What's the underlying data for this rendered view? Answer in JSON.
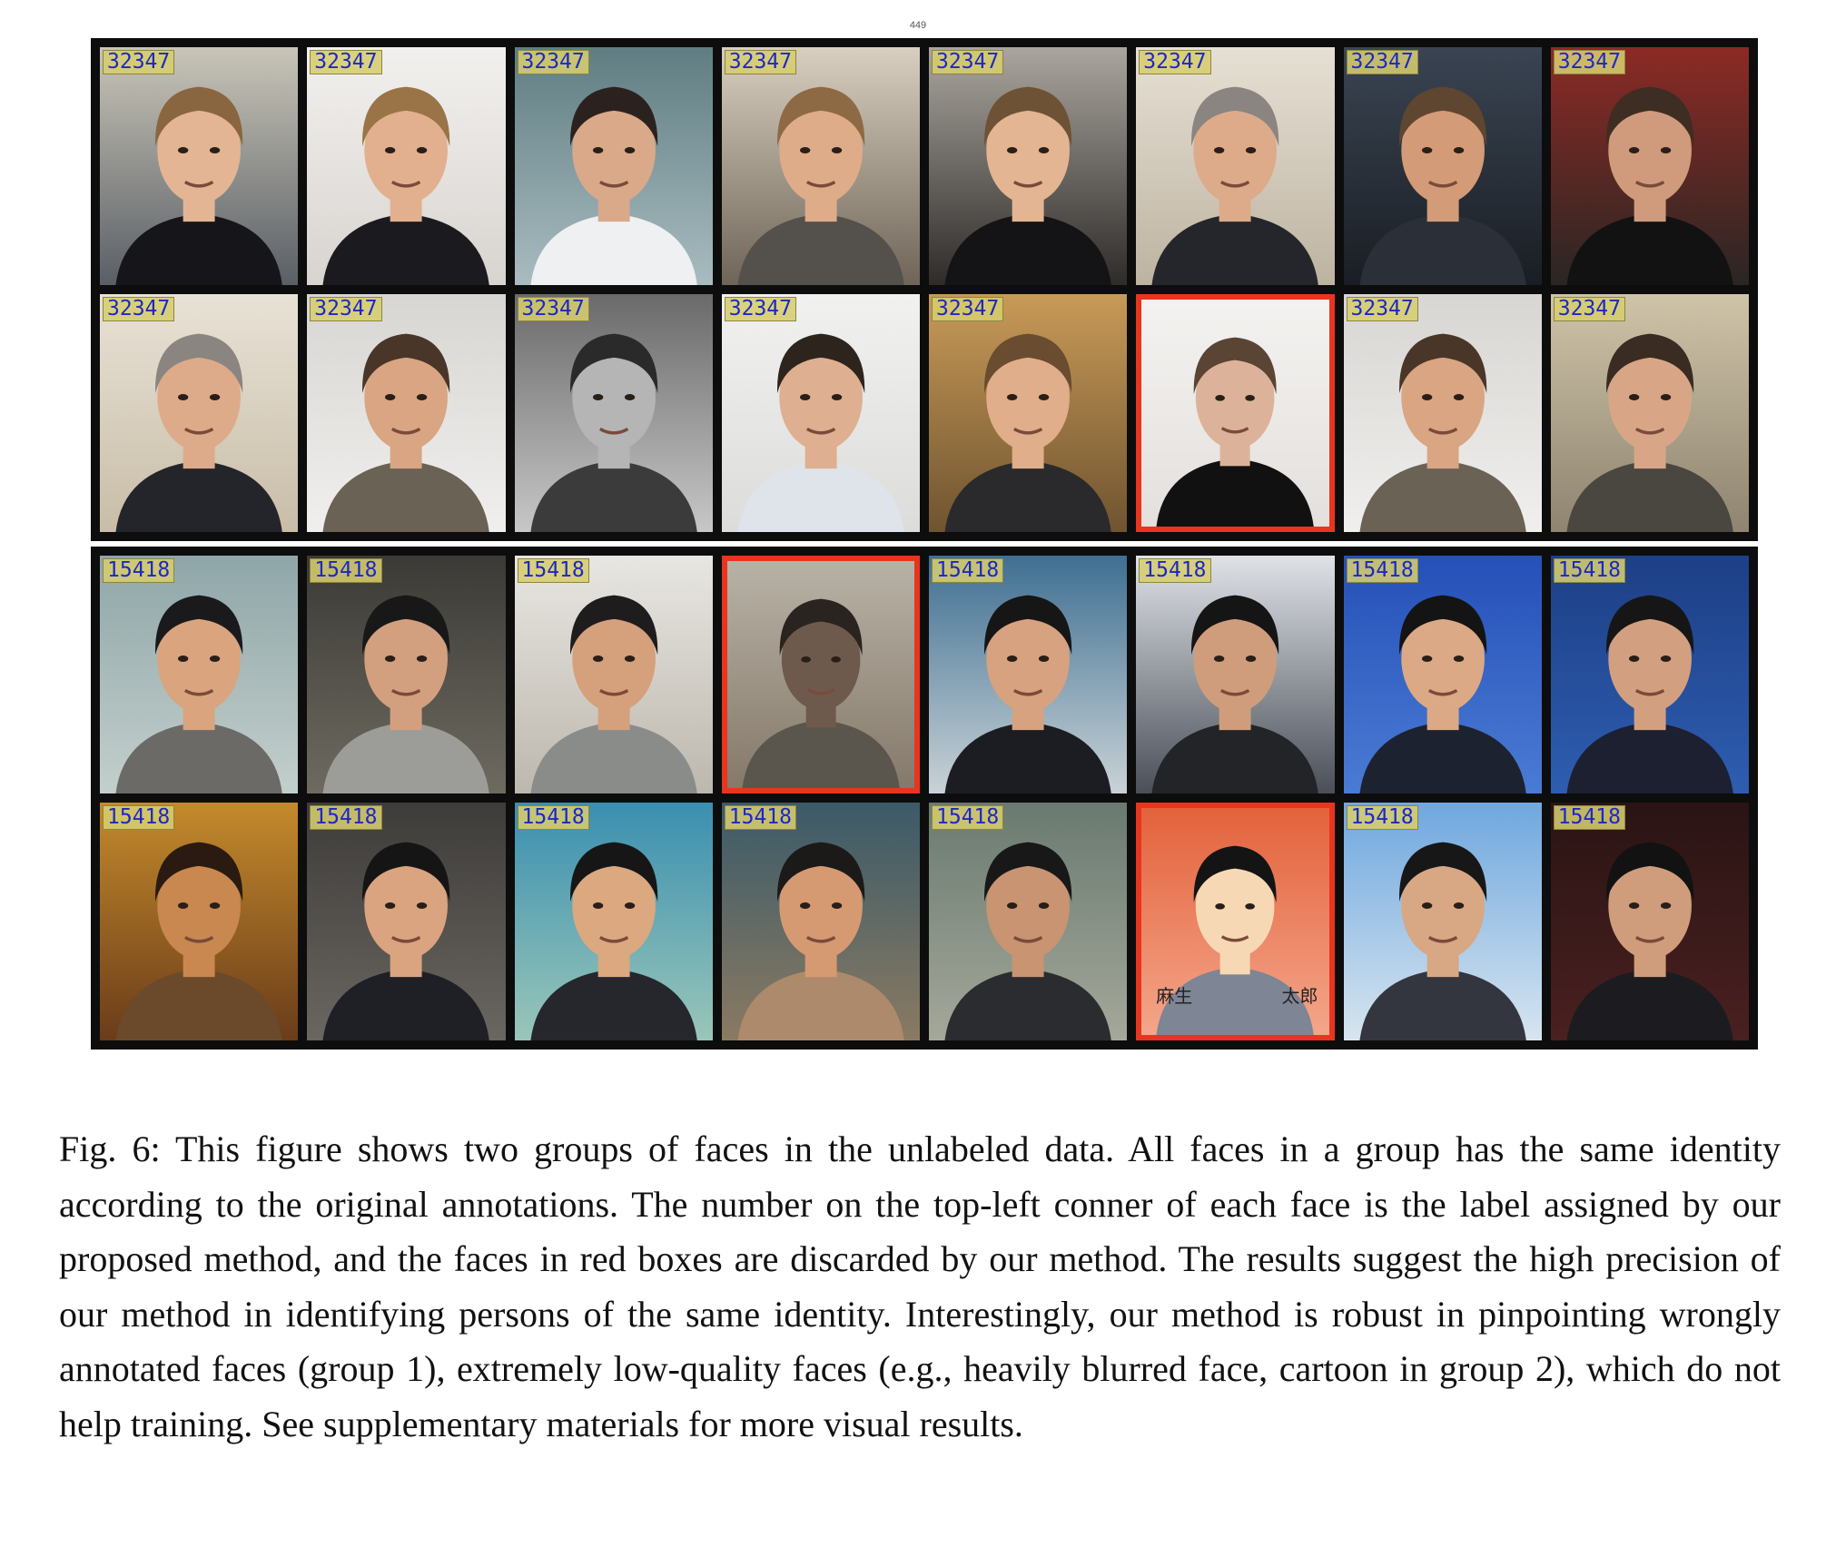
{
  "page_number": "449",
  "groups": [
    {
      "faces": [
        {
          "label": "32347",
          "discarded": false,
          "bg1": "#c9c5b8",
          "bg2": "#5a5f66",
          "skin": "#e3b594",
          "hair": "#8a6640",
          "shirt": "#15151a"
        },
        {
          "label": "32347",
          "discarded": false,
          "bg1": "#f2f0ee",
          "bg2": "#d8d4d0",
          "skin": "#e2b08f",
          "hair": "#9a7447",
          "shirt": "#1b1b1f"
        },
        {
          "label": "32347",
          "discarded": false,
          "bg1": "#5f7d82",
          "bg2": "#a9bcc0",
          "skin": "#d9a98a",
          "hair": "#2b2220",
          "shirt": "#eef0f2"
        },
        {
          "label": "32347",
          "discarded": false,
          "bg1": "#d9cfc0",
          "bg2": "#6e6558",
          "skin": "#dfac89",
          "hair": "#8e6a44",
          "shirt": "#54514c"
        },
        {
          "label": "32347",
          "discarded": false,
          "bg1": "#aaa59e",
          "bg2": "#2e2b29",
          "skin": "#e4b592",
          "hair": "#6e5235",
          "shirt": "#141416"
        },
        {
          "label": "32347",
          "discarded": false,
          "bg1": "#e6e0d4",
          "bg2": "#bdb3a1",
          "skin": "#ddab8a",
          "hair": "#8a8580",
          "shirt": "#24262c"
        },
        {
          "label": "32347",
          "discarded": false,
          "bg1": "#3a4452",
          "bg2": "#1a1e24",
          "skin": "#d49b78",
          "hair": "#5e4630",
          "shirt": "#2a2f38"
        },
        {
          "label": "32347",
          "discarded": false,
          "bg1": "#8c2a25",
          "bg2": "#2a2624",
          "skin": "#cf9b7c",
          "hair": "#3e2d22",
          "shirt": "#121212"
        },
        {
          "label": "32347",
          "discarded": false,
          "bg1": "#e8e2d6",
          "bg2": "#c8bda8",
          "skin": "#ddab8a",
          "hair": "#8a8580",
          "shirt": "#23252b"
        },
        {
          "label": "32347",
          "discarded": false,
          "bg1": "#d8d6d3",
          "bg2": "#f0efed",
          "skin": "#d9a583",
          "hair": "#4a3628",
          "shirt": "#6a6254"
        },
        {
          "label": "32347",
          "discarded": false,
          "bg1": "#6a6a6a",
          "bg2": "#c7c7c7",
          "skin": "#b5b5b5",
          "hair": "#2a2a2a",
          "shirt": "#3b3b3b"
        },
        {
          "label": "32347",
          "discarded": false,
          "bg1": "#f1f1ef",
          "bg2": "#dcdcda",
          "skin": "#deaf90",
          "hair": "#2e241e",
          "shirt": "#dfe3ea"
        },
        {
          "label": "32347",
          "discarded": false,
          "bg1": "#c89a58",
          "bg2": "#6f5430",
          "skin": "#e0ae8a",
          "hair": "#6a4c30",
          "shirt": "#2a2a2c"
        },
        {
          "label": "",
          "discarded": true,
          "bg1": "#f4f2f0",
          "bg2": "#e3e0dd",
          "skin": "#dcb39a",
          "hair": "#5a4434",
          "shirt": "#111111"
        },
        {
          "label": "32347",
          "discarded": false,
          "bg1": "#d8d6d3",
          "bg2": "#f0efed",
          "skin": "#d9a583",
          "hair": "#4a3628",
          "shirt": "#6a6254"
        },
        {
          "label": "32347",
          "discarded": false,
          "bg1": "#cfc4a8",
          "bg2": "#8e8470",
          "skin": "#d8a686",
          "hair": "#3a2c22",
          "shirt": "#4a4640"
        }
      ]
    },
    {
      "faces": [
        {
          "label": "15418",
          "discarded": false,
          "bg1": "#8fa6a8",
          "bg2": "#c3cfcc",
          "skin": "#d9a47e",
          "hair": "#1a1a1c",
          "shirt": "#6b6a66"
        },
        {
          "label": "15418",
          "discarded": false,
          "bg1": "#3b3a36",
          "bg2": "#6e6a60",
          "skin": "#d3a07f",
          "hair": "#181818",
          "shirt": "#9c9c98"
        },
        {
          "label": "15418",
          "discarded": false,
          "bg1": "#e8e6e2",
          "bg2": "#bdb8ae",
          "skin": "#d5a07c",
          "hair": "#1e1c1c",
          "shirt": "#8a8c8a"
        },
        {
          "label": "",
          "discarded": true,
          "bg1": "#b8b2a6",
          "bg2": "#85796a",
          "skin": "#6e5a4c",
          "hair": "#2a2420",
          "shirt": "#5a564e"
        },
        {
          "label": "15418",
          "discarded": false,
          "bg1": "#3f6f92",
          "bg2": "#c9d2d6",
          "skin": "#d6a27f",
          "hair": "#161616",
          "shirt": "#1b1d22"
        },
        {
          "label": "15418",
          "discarded": false,
          "bg1": "#dfe3e8",
          "bg2": "#4a4f58",
          "skin": "#d09d7c",
          "hair": "#151515",
          "shirt": "#232428"
        },
        {
          "label": "15418",
          "discarded": false,
          "bg1": "#2550b8",
          "bg2": "#4a7bd4",
          "skin": "#dba985",
          "hair": "#141414",
          "shirt": "#1d2230"
        },
        {
          "label": "15418",
          "discarded": false,
          "bg1": "#1d3f86",
          "bg2": "#2e5db0",
          "skin": "#d2a080",
          "hair": "#161616",
          "shirt": "#1c2030"
        },
        {
          "label": "15418",
          "discarded": false,
          "bg1": "#c48a2c",
          "bg2": "#6a3c1a",
          "skin": "#c8884f",
          "hair": "#2a1a12",
          "shirt": "#6a4a2a"
        },
        {
          "label": "15418",
          "discarded": false,
          "bg1": "#3e3c3a",
          "bg2": "#6a6660",
          "skin": "#d9a47f",
          "hair": "#151515",
          "shirt": "#1e2026"
        },
        {
          "label": "15418",
          "discarded": false,
          "bg1": "#3a8fb0",
          "bg2": "#9ac6b8",
          "skin": "#dba880",
          "hair": "#161616",
          "shirt": "#25272c"
        },
        {
          "label": "15418",
          "discarded": false,
          "bg1": "#3b5a68",
          "bg2": "#8a7a62",
          "skin": "#d59a72",
          "hair": "#1c1a18",
          "shirt": "#ad8a6c"
        },
        {
          "label": "15418",
          "discarded": false,
          "bg1": "#6a7a70",
          "bg2": "#a4a89a",
          "skin": "#c89472",
          "hair": "#181818",
          "shirt": "#2a2c30"
        },
        {
          "label": "",
          "discarded": true,
          "cartoon": true,
          "bg1": "#e3623c",
          "bg2": "#f4a68a",
          "skin": "#f6d9b4",
          "hair": "#141414",
          "shirt": "#7e8594"
        },
        {
          "label": "15418",
          "discarded": false,
          "bg1": "#6fa7df",
          "bg2": "#d7e5ef",
          "skin": "#d8a784",
          "hair": "#171717",
          "shirt": "#33363e"
        },
        {
          "label": "15418",
          "discarded": false,
          "bg1": "#2a1414",
          "bg2": "#4a2020",
          "skin": "#cf9d7c",
          "hair": "#121212",
          "shirt": "#1c1c20"
        }
      ]
    }
  ],
  "cartoon_text": [
    "麻生",
    "太郎"
  ],
  "caption": "Fig. 6: This figure shows two groups of faces in the unlabeled data. All faces in a group has the same identity according to the original annotations. The number on the top-left conner of each face is the label assigned by our proposed method, and the faces in red boxes are discarded by our method. The results suggest the high precision of our method in identifying persons of the same identity. Interestingly, our method is robust in pinpointing wrongly annotated faces (group 1), extremely low-quality faces (e.g., heavily blurred face, cartoon in group 2), which do not help training. See supplementary materials for more visual results."
}
